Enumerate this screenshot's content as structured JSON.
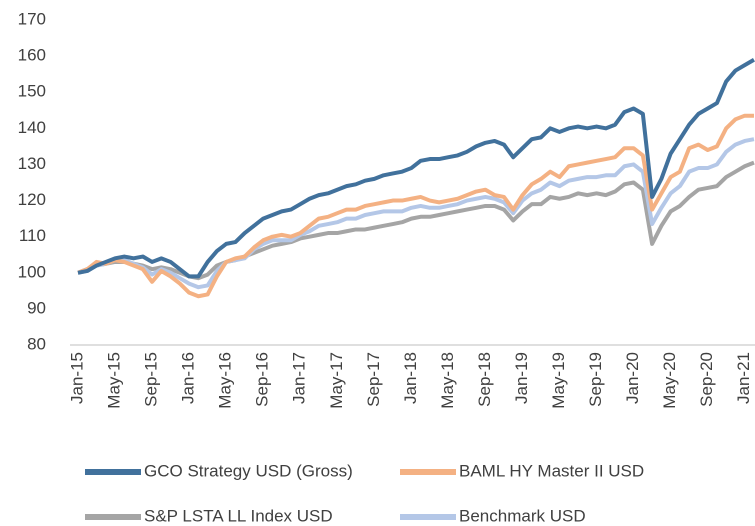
{
  "chart_data": {
    "type": "line",
    "categories": [
      "Jan-15",
      null,
      null,
      null,
      "May-15",
      null,
      null,
      null,
      "Sep-15",
      null,
      null,
      null,
      "Jan-16",
      null,
      null,
      null,
      "May-16",
      null,
      null,
      null,
      "Sep-16",
      null,
      null,
      null,
      "Jan-17",
      null,
      null,
      null,
      "May-17",
      null,
      null,
      null,
      "Sep-17",
      null,
      null,
      null,
      "Jan-18",
      null,
      null,
      null,
      "May-18",
      null,
      null,
      null,
      "Sep-18",
      null,
      null,
      null,
      "Jan-19",
      null,
      null,
      null,
      "May-19",
      null,
      null,
      null,
      "Sep-19",
      null,
      null,
      null,
      "Jan-20",
      null,
      null,
      null,
      "May-20",
      null,
      null,
      null,
      "Sep-20",
      null,
      null,
      null,
      "Jan-21",
      null
    ],
    "series": [
      {
        "name": "GCO Strategy USD (Gross)",
        "color": "#41719c",
        "values": [
          100,
          100.5,
          102,
          103,
          104,
          104.5,
          104,
          104.5,
          103,
          104,
          103,
          101,
          99,
          99,
          103,
          106,
          108,
          108.5,
          111,
          113,
          115,
          116,
          117,
          117.5,
          119,
          120.5,
          121.5,
          122,
          123,
          124,
          124.5,
          125.5,
          126,
          127,
          127.5,
          128,
          129,
          131,
          131.5,
          131.5,
          132,
          132.5,
          133.5,
          135,
          136,
          136.5,
          135.5,
          132,
          134.5,
          137,
          137.5,
          140,
          139,
          140,
          140.5,
          140,
          140.5,
          140,
          141,
          144.5,
          145.5,
          144,
          121,
          126,
          133,
          137,
          141,
          144,
          145.5,
          147,
          153,
          156,
          157.5,
          159
        ]
      },
      {
        "name": "BAML HY Master II USD",
        "color": "#f4b183",
        "values": [
          100,
          101,
          103,
          102.5,
          103.5,
          103,
          102,
          101,
          97.5,
          100.5,
          99,
          97,
          94.5,
          93.5,
          94,
          99,
          103,
          104,
          104.5,
          107,
          109,
          110,
          110.5,
          110,
          111,
          113,
          115,
          115.5,
          116.5,
          117.5,
          117.5,
          118.5,
          119,
          119.5,
          120,
          120,
          120.5,
          121,
          120,
          119.5,
          120,
          120.5,
          121.5,
          122.5,
          123,
          121.5,
          121,
          117.5,
          121.5,
          124.5,
          126,
          128,
          126.5,
          129.5,
          130,
          130.5,
          131,
          131.5,
          132,
          134.5,
          134.5,
          132.5,
          117.5,
          122,
          126.5,
          128,
          134.5,
          135.5,
          134,
          135,
          140,
          142.5,
          143.5,
          143.5
        ]
      },
      {
        "name": "S&P LSTA LL Index USD",
        "color": "#a5a5a5",
        "values": [
          100,
          101,
          102,
          102.5,
          103,
          103,
          102.5,
          102,
          101,
          101.5,
          101,
          100,
          99,
          98.5,
          99.5,
          102,
          103,
          103.5,
          104.5,
          105.5,
          106.5,
          107.5,
          108,
          108.5,
          109.5,
          110,
          110.5,
          111,
          111,
          111.5,
          112,
          112,
          112.5,
          113,
          113.5,
          114,
          115,
          115.5,
          115.5,
          116,
          116.5,
          117,
          117.5,
          118,
          118.5,
          118.5,
          117.5,
          114.5,
          117,
          119,
          119,
          121,
          120.5,
          121,
          122,
          121.5,
          122,
          121.5,
          122.5,
          124.5,
          125,
          123,
          108,
          113,
          117,
          118.5,
          121,
          123,
          123.5,
          124,
          126.5,
          128,
          129.5,
          130.5
        ]
      },
      {
        "name": "Benchmark USD",
        "color": "#b4c7e7",
        "values": [
          100,
          100.5,
          102,
          102.5,
          103.5,
          103.5,
          102.5,
          101.5,
          99.5,
          101,
          100,
          98.5,
          97,
          96,
          96.5,
          100.5,
          103,
          103.5,
          104,
          106.5,
          108,
          109,
          109,
          109,
          110.5,
          111.5,
          113,
          113.5,
          114,
          115,
          115,
          116,
          116.5,
          117,
          117,
          117,
          118,
          118.5,
          118,
          118,
          118.5,
          119,
          120,
          120.5,
          121,
          120.5,
          119.5,
          116.5,
          120,
          122,
          123,
          125,
          124,
          125.5,
          126,
          126.5,
          126.5,
          127,
          127,
          129.5,
          130,
          128,
          113.5,
          118,
          122,
          124,
          128,
          129,
          129,
          130,
          133.5,
          135.5,
          136.5,
          137
        ]
      }
    ],
    "ylim": [
      80,
      170
    ],
    "yticks": [
      80,
      90,
      100,
      110,
      120,
      130,
      140,
      150,
      160,
      170
    ],
    "grid": false,
    "legend": "bottom"
  }
}
